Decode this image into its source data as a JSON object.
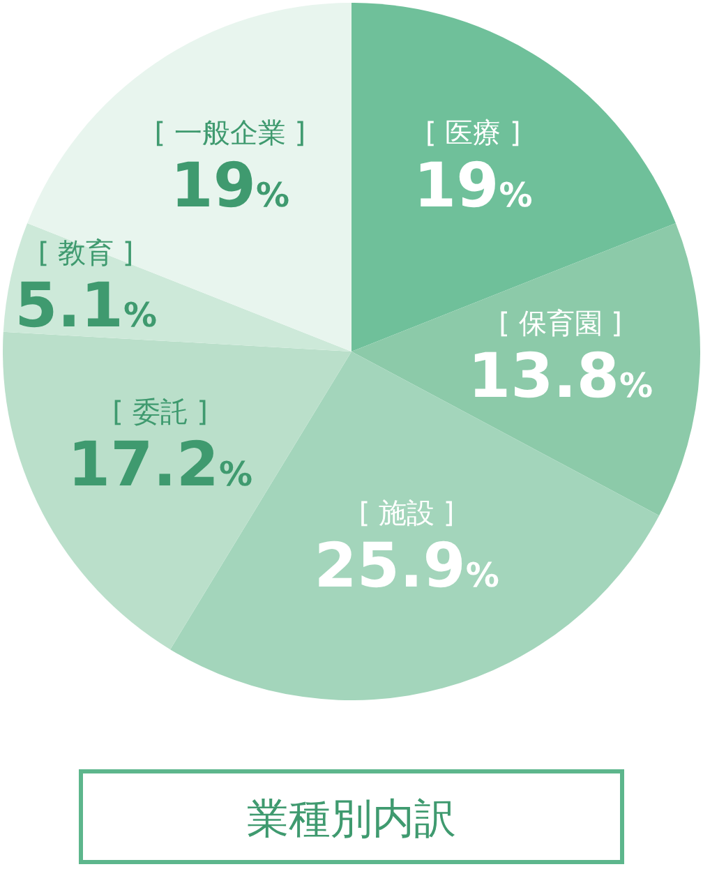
{
  "chart_data": {
    "type": "pie",
    "title": "業種別内訳",
    "categories": [
      "[ 医療 ]",
      "[ 保育園 ]",
      "[ 施設 ]",
      "[ 委託 ]",
      "[ 教育 ]",
      "[ 一般企業 ]"
    ],
    "values": [
      19,
      13.8,
      25.9,
      17.2,
      5.1,
      19
    ],
    "value_labels": [
      "19%",
      "13.8%",
      "25.9%",
      "17.2%",
      "5.1%",
      "19%"
    ],
    "colors": [
      "#6fc09a",
      "#8ccaa9",
      "#a3d5bb",
      "#badfca",
      "#cde9d9",
      "#e8f5ee"
    ]
  }
}
